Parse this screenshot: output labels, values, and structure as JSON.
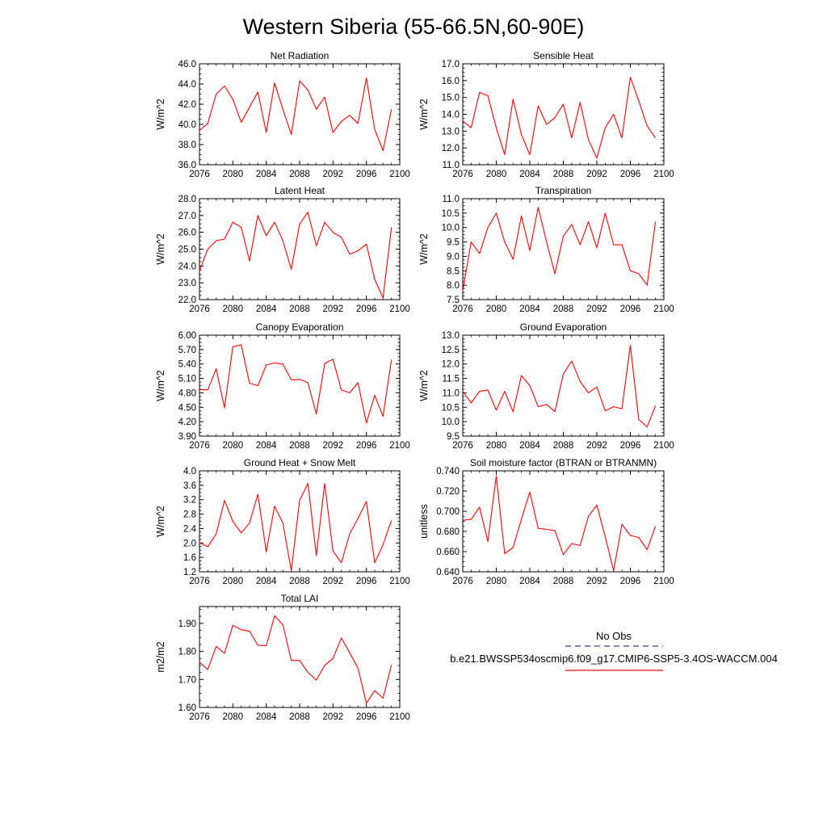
{
  "title": "Western Siberia (55-66.5N,60-90E)",
  "legend": {
    "obs_label": "No Obs",
    "obs_color": "#3a3a9a",
    "model_label": "b.e21.BWSSP534oscmip6.f09_g17.CMIP6-SSP5-3.4OS-WACCM.004",
    "model_color": "#ff0000"
  },
  "line_color": "#ff0000",
  "chart_data": [
    {
      "type": "line",
      "title": "Net Radiation",
      "ylabel": "W/m^2",
      "xlim": [
        2076,
        2100
      ],
      "ylim": [
        36.0,
        46.0
      ],
      "xticks": [
        "2076",
        "2080",
        "2084",
        "2088",
        "2092",
        "2096",
        "2100"
      ],
      "yticks": [
        "36.0",
        "38.0",
        "40.0",
        "42.0",
        "44.0",
        "46.0"
      ],
      "x": [
        2076,
        2077,
        2078,
        2079,
        2080,
        2081,
        2082,
        2083,
        2084,
        2085,
        2086,
        2087,
        2088,
        2089,
        2090,
        2091,
        2092,
        2093,
        2094,
        2095,
        2096,
        2097,
        2098,
        2099
      ],
      "values": [
        39.4,
        40.1,
        43.0,
        43.8,
        42.5,
        40.2,
        41.7,
        43.2,
        39.2,
        44.1,
        41.5,
        39.0,
        44.3,
        43.4,
        41.5,
        42.7,
        39.2,
        40.3,
        40.9,
        40.1,
        44.6,
        39.5,
        37.4,
        41.5
      ]
    },
    {
      "type": "line",
      "title": "Sensible Heat",
      "ylabel": "W/m^2",
      "xlim": [
        2076,
        2100
      ],
      "ylim": [
        11.0,
        17.0
      ],
      "xticks": [
        "2076",
        "2080",
        "2084",
        "2088",
        "2092",
        "2096",
        "2100"
      ],
      "yticks": [
        "11.0",
        "12.0",
        "13.0",
        "14.0",
        "15.0",
        "16.0",
        "17.0"
      ],
      "x": [
        2076,
        2077,
        2078,
        2079,
        2080,
        2081,
        2082,
        2083,
        2084,
        2085,
        2086,
        2087,
        2088,
        2089,
        2090,
        2091,
        2092,
        2093,
        2094,
        2095,
        2096,
        2097,
        2098,
        2099
      ],
      "values": [
        13.6,
        13.2,
        15.3,
        15.1,
        13.2,
        11.6,
        14.9,
        12.8,
        11.6,
        14.5,
        13.4,
        13.8,
        14.6,
        12.6,
        14.7,
        12.5,
        11.4,
        13.2,
        14.0,
        12.6,
        16.2,
        14.8,
        13.3,
        12.6
      ]
    },
    {
      "type": "line",
      "title": "Latent Heat",
      "ylabel": "W/m^2",
      "xlim": [
        2076,
        2100
      ],
      "ylim": [
        22.0,
        28.0
      ],
      "xticks": [
        "2076",
        "2080",
        "2084",
        "2088",
        "2092",
        "2096",
        "2100"
      ],
      "yticks": [
        "22.0",
        "23.0",
        "24.0",
        "25.0",
        "26.0",
        "27.0",
        "28.0"
      ],
      "x": [
        2076,
        2077,
        2078,
        2079,
        2080,
        2081,
        2082,
        2083,
        2084,
        2085,
        2086,
        2087,
        2088,
        2089,
        2090,
        2091,
        2092,
        2093,
        2094,
        2095,
        2096,
        2097,
        2098,
        2099
      ],
      "values": [
        23.7,
        25.0,
        25.5,
        25.6,
        26.6,
        26.3,
        24.3,
        27.0,
        25.8,
        26.6,
        25.5,
        23.8,
        26.5,
        27.2,
        25.2,
        26.6,
        26.0,
        25.7,
        24.7,
        24.9,
        25.3,
        23.2,
        22.1,
        26.3
      ]
    },
    {
      "type": "line",
      "title": "Transpiration",
      "ylabel": "W/m^2",
      "xlim": [
        2076,
        2100
      ],
      "ylim": [
        7.5,
        11.0
      ],
      "xticks": [
        "2076",
        "2080",
        "2084",
        "2088",
        "2092",
        "2096",
        "2100"
      ],
      "yticks": [
        "7.5",
        "8.0",
        "8.5",
        "9.0",
        "9.5",
        "10.0",
        "10.5",
        "11.0"
      ],
      "x": [
        2076,
        2077,
        2078,
        2079,
        2080,
        2081,
        2082,
        2083,
        2084,
        2085,
        2086,
        2087,
        2088,
        2089,
        2090,
        2091,
        2092,
        2093,
        2094,
        2095,
        2096,
        2097,
        2098,
        2099
      ],
      "values": [
        7.8,
        9.5,
        9.1,
        10.0,
        10.5,
        9.5,
        8.9,
        10.4,
        9.2,
        10.7,
        9.5,
        8.4,
        9.7,
        10.1,
        9.4,
        10.2,
        9.3,
        10.5,
        9.4,
        9.4,
        8.5,
        8.4,
        8.0,
        10.2
      ]
    },
    {
      "type": "line",
      "title": "Canopy Evaporation",
      "ylabel": "W/m^2",
      "xlim": [
        2076,
        2100
      ],
      "ylim": [
        3.9,
        6.0
      ],
      "xticks": [
        "2076",
        "2080",
        "2084",
        "2088",
        "2092",
        "2096",
        "2100"
      ],
      "yticks": [
        "3.90",
        "4.20",
        "4.50",
        "4.80",
        "5.10",
        "5.40",
        "5.70",
        "6.00"
      ],
      "x": [
        2076,
        2077,
        2078,
        2079,
        2080,
        2081,
        2082,
        2083,
        2084,
        2085,
        2086,
        2087,
        2088,
        2089,
        2090,
        2091,
        2092,
        2093,
        2094,
        2095,
        2096,
        2097,
        2098,
        2099
      ],
      "values": [
        4.87,
        4.86,
        5.3,
        4.49,
        5.76,
        5.8,
        5.0,
        4.95,
        5.38,
        5.42,
        5.4,
        5.07,
        5.08,
        5.01,
        4.36,
        5.41,
        5.5,
        4.86,
        4.8,
        5.01,
        4.17,
        4.75,
        4.31,
        5.49
      ]
    },
    {
      "type": "line",
      "title": "Ground Evaporation",
      "ylabel": "W/m^2",
      "xlim": [
        2076,
        2100
      ],
      "ylim": [
        9.5,
        13.0
      ],
      "xticks": [
        "2076",
        "2080",
        "2084",
        "2088",
        "2092",
        "2096",
        "2100"
      ],
      "yticks": [
        "9.5",
        "10.0",
        "10.5",
        "11.0",
        "11.5",
        "12.0",
        "12.5",
        "13.0"
      ],
      "x": [
        2076,
        2077,
        2078,
        2079,
        2080,
        2081,
        2082,
        2083,
        2084,
        2085,
        2086,
        2087,
        2088,
        2089,
        2090,
        2091,
        2092,
        2093,
        2094,
        2095,
        2096,
        2097,
        2098,
        2099
      ],
      "values": [
        11.05,
        10.65,
        11.05,
        11.1,
        10.4,
        11.05,
        10.35,
        11.6,
        11.25,
        10.52,
        10.6,
        10.35,
        11.65,
        12.1,
        11.4,
        11.0,
        11.2,
        10.38,
        10.52,
        10.45,
        12.65,
        10.08,
        9.82,
        10.55
      ]
    },
    {
      "type": "line",
      "title": "Ground Heat + Snow Melt",
      "ylabel": "W/m^2",
      "xlim": [
        2076,
        2100
      ],
      "ylim": [
        1.2,
        4.0
      ],
      "xticks": [
        "2076",
        "2080",
        "2084",
        "2088",
        "2092",
        "2096",
        "2100"
      ],
      "yticks": [
        "1.2",
        "1.6",
        "2.0",
        "2.4",
        "2.8",
        "3.2",
        "3.6",
        "4.0"
      ],
      "x": [
        2076,
        2077,
        2078,
        2079,
        2080,
        2081,
        2082,
        2083,
        2084,
        2085,
        2086,
        2087,
        2088,
        2089,
        2090,
        2091,
        2092,
        2093,
        2094,
        2095,
        2096,
        2097,
        2098,
        2099
      ],
      "values": [
        2.0,
        1.9,
        2.25,
        3.18,
        2.6,
        2.28,
        2.55,
        3.35,
        1.75,
        3.02,
        2.55,
        1.23,
        3.18,
        3.65,
        1.65,
        3.65,
        1.78,
        1.45,
        2.25,
        2.68,
        3.15,
        1.45,
        1.95,
        2.62
      ]
    },
    {
      "type": "line",
      "title": "Soil moisture factor (BTRAN or BTRANMN)",
      "ylabel": "unitless",
      "xlim": [
        2076,
        2100
      ],
      "ylim": [
        0.64,
        0.74
      ],
      "xticks": [
        "2076",
        "2080",
        "2084",
        "2088",
        "2092",
        "2096",
        "2100"
      ],
      "yticks": [
        "0.640",
        "0.660",
        "0.680",
        "0.700",
        "0.720",
        "0.740"
      ],
      "x": [
        2076,
        2077,
        2078,
        2079,
        2080,
        2081,
        2082,
        2083,
        2084,
        2085,
        2086,
        2087,
        2088,
        2089,
        2090,
        2091,
        2092,
        2093,
        2094,
        2095,
        2096,
        2097,
        2098,
        2099
      ],
      "values": [
        0.691,
        0.692,
        0.704,
        0.67,
        0.735,
        0.658,
        0.664,
        0.692,
        0.719,
        0.683,
        0.682,
        0.681,
        0.657,
        0.668,
        0.666,
        0.695,
        0.706,
        0.675,
        0.641,
        0.687,
        0.676,
        0.674,
        0.662,
        0.685
      ]
    },
    {
      "type": "line",
      "title": "Total LAI",
      "ylabel": "m2/m2",
      "xlim": [
        2076,
        2100
      ],
      "ylim": [
        1.6,
        1.96
      ],
      "xticks": [
        "2076",
        "2080",
        "2084",
        "2088",
        "2092",
        "2096",
        "2100"
      ],
      "yticks": [
        "1.60",
        "1.70",
        "1.80",
        "1.90"
      ],
      "x": [
        2076,
        2077,
        2078,
        2079,
        2080,
        2081,
        2082,
        2083,
        2084,
        2085,
        2086,
        2087,
        2088,
        2089,
        2090,
        2091,
        2092,
        2093,
        2094,
        2095,
        2096,
        2097,
        2098,
        2099
      ],
      "values": [
        1.762,
        1.735,
        1.818,
        1.793,
        1.893,
        1.877,
        1.872,
        1.822,
        1.82,
        1.927,
        1.895,
        1.768,
        1.768,
        1.725,
        1.698,
        1.75,
        1.775,
        1.848,
        1.795,
        1.74,
        1.615,
        1.66,
        1.633,
        1.752
      ]
    }
  ]
}
